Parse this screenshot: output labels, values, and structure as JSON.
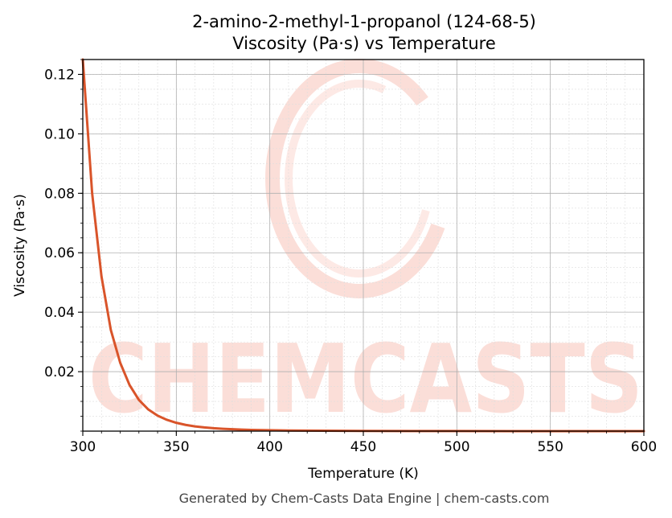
{
  "chart_data": {
    "type": "line",
    "title": "2-amino-2-methyl-1-propanol (124-68-5)",
    "subtitle": "Viscosity (Pa·s) vs Temperature",
    "xlabel": "Temperature (K)",
    "ylabel": "Viscosity (Pa·s)",
    "xlim": [
      300,
      600
    ],
    "ylim": [
      0,
      0.125
    ],
    "xticks": [
      300,
      350,
      400,
      450,
      500,
      550,
      600
    ],
    "xtick_labels": [
      "300",
      "350",
      "400",
      "450",
      "500",
      "550",
      "600"
    ],
    "yticks": [
      0.02,
      0.04,
      0.06,
      0.08,
      0.1,
      0.12
    ],
    "ytick_labels": [
      "0.02",
      "0.04",
      "0.06",
      "0.08",
      "0.10",
      "0.12"
    ],
    "grid": true,
    "series": [
      {
        "color": "#d9542a",
        "x": [
          300,
          305,
          310,
          315,
          320,
          325,
          330,
          335,
          340,
          345,
          350,
          355,
          360,
          365,
          370,
          375,
          380,
          385,
          390,
          400,
          410,
          420,
          430,
          440,
          450,
          475,
          500,
          550,
          600
        ],
        "y": [
          0.125,
          0.08,
          0.052,
          0.034,
          0.023,
          0.0155,
          0.0105,
          0.0073,
          0.0052,
          0.0038,
          0.0028,
          0.0021,
          0.0016,
          0.00125,
          0.00098,
          0.00078,
          0.00063,
          0.00051,
          0.00042,
          0.00029,
          0.00021,
          0.00016,
          0.00012,
          9e-05,
          7e-05,
          4e-05,
          2e-05,
          1e-05,
          5e-06
        ]
      }
    ]
  },
  "watermark": {
    "text": "CHEMCASTS",
    "color": "#fbd9d2"
  },
  "footer": "Generated by Chem-Casts Data Engine | chem-casts.com"
}
